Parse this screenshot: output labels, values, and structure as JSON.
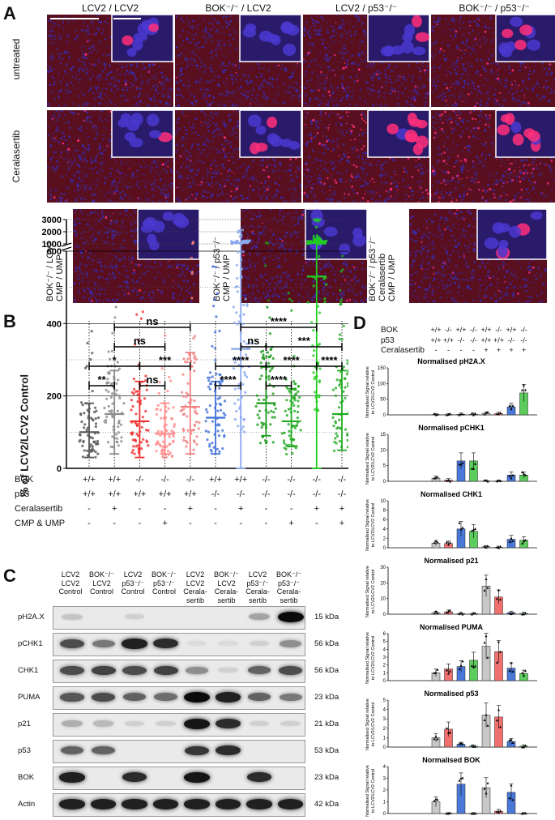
{
  "panelA": {
    "label": "A",
    "columns": [
      "LCV2 / LCV2",
      "BOK⁻/⁻ / LCV2",
      "LCV2 / p53⁻/⁻",
      "BOK⁻/⁻ / p53⁻/⁻"
    ],
    "rows": [
      "untreated",
      "Ceralasertib"
    ],
    "bottom_labels": [
      {
        "line1": "BOK⁻/⁻ / LCV2",
        "line2": "CMP / UMP",
        "line3": ""
      },
      {
        "line1": "BOK⁻/⁻ / p53⁻/⁻",
        "line2": "CMP / UMP",
        "line3": ""
      },
      {
        "line1": "BOK⁻/⁻ / p53⁻/⁻",
        "line2": "Ceralasertib",
        "line3": "CMP / UMP"
      }
    ],
    "colors": {
      "tissue": "#5a0f1e",
      "nuclei": "#3a2aa8",
      "bright_nuclei": "#ff2f7a",
      "inset_bg": "#2a1a6a"
    }
  },
  "panelB": {
    "label": "B",
    "ylabel": "% of LCV2/LCV2 Control",
    "yticks_upper": [
      "3000",
      "2000",
      "1000"
    ],
    "yticks_lower": [
      "600",
      "400",
      "200",
      "0"
    ],
    "significance": [
      "ns",
      "ns",
      "*",
      "***",
      "**",
      "ns",
      "****",
      "***",
      "ns",
      "****",
      "****",
      "****",
      "****",
      "****"
    ],
    "conditions": {
      "labels": [
        "BOK",
        "p53",
        "Ceralasertib",
        "CMP & UMP"
      ],
      "BOK": [
        "+/+",
        "+/+",
        "-/-",
        "-/-",
        "-/-",
        "+/+",
        "+/+",
        "-/-",
        "-/-",
        "-/-",
        "-/-"
      ],
      "p53": [
        "+/+",
        "+/+",
        "+/+",
        "+/+",
        "+/+",
        "-/-",
        "-/-",
        "-/-",
        "-/-",
        "-/-",
        "-/-"
      ],
      "Ceralasertib": [
        "-",
        "+",
        "-",
        "-",
        "+",
        "-",
        "+",
        "-",
        "-",
        "+",
        "+"
      ],
      "CMP & UMP": [
        "-",
        "-",
        "-",
        "+",
        "-",
        "-",
        "-",
        "-",
        "+",
        "-",
        "+"
      ]
    },
    "chart_data": {
      "type": "scatter",
      "ylabel": "% of LCV2/LCV2 Control",
      "groups": 11,
      "means": [
        100,
        150,
        130,
        95,
        170,
        140,
        330,
        180,
        130,
        530,
        150
      ],
      "sd_upper": [
        180,
        270,
        240,
        180,
        320,
        240,
        800,
        280,
        220,
        800,
        270
      ],
      "sd_lower": [
        30,
        40,
        30,
        40,
        40,
        40,
        0,
        90,
        60,
        0,
        50
      ],
      "colors": [
        "#555555",
        "#8c8c8c",
        "#f03030",
        "#ff8888",
        "#f08080",
        "#4070d8",
        "#8aa8ee",
        "#1a9a1a",
        "#22aa22",
        "#22cc22",
        "#22aa22"
      ]
    }
  },
  "panelC": {
    "label": "C",
    "lanes": [
      {
        "l1": "LCV2",
        "l2": "LCV2",
        "l3": "Control"
      },
      {
        "l1": "BOK⁻/⁻",
        "l2": "LCV2",
        "l3": "Control"
      },
      {
        "l1": "LCV2",
        "l2": "p53⁻/⁻",
        "l3": "Control"
      },
      {
        "l1": "BOK⁻/⁻",
        "l2": "p53⁻/⁻",
        "l3": "Control"
      },
      {
        "l1": "LCV2",
        "l2": "LCV2",
        "l3": "Cerala-",
        "l4": "sertib"
      },
      {
        "l1": "BOK⁻/⁻",
        "l2": "LCV2",
        "l3": "Cerala-",
        "l4": "sertib"
      },
      {
        "l1": "LCV2",
        "l2": "p53⁻/⁻",
        "l3": "Cerala-",
        "l4": "sertib"
      },
      {
        "l1": "BOK⁻/⁻",
        "l2": "p53⁻/⁻",
        "l3": "Cerala-",
        "l4": "sertib"
      }
    ],
    "blots": [
      {
        "name": "pH2A.X",
        "kda": "15 kDa",
        "intensity": [
          0.15,
          0,
          0.1,
          0,
          0,
          0,
          0.3,
          1.0
        ]
      },
      {
        "name": "pCHK1",
        "kda": "56 kDa",
        "intensity": [
          0.7,
          0.5,
          0.9,
          0.85,
          0.05,
          0.05,
          0.1,
          0.4
        ]
      },
      {
        "name": "CHK1",
        "kda": "56 kDa",
        "intensity": [
          0.7,
          0.75,
          0.7,
          0.75,
          0.4,
          0.1,
          0.6,
          0.7
        ]
      },
      {
        "name": "PUMA",
        "kda": "23 kDa",
        "intensity": [
          0.65,
          0.7,
          0.6,
          0.55,
          1.0,
          0.9,
          0.6,
          0.5
        ]
      },
      {
        "name": "p21",
        "kda": "21 kDa",
        "intensity": [
          0.25,
          0.2,
          0.1,
          0.1,
          0.95,
          0.85,
          0.1,
          0.1
        ]
      },
      {
        "name": "p53",
        "kda": "53 kDa",
        "intensity": [
          0.6,
          0.6,
          0.0,
          0.0,
          0.8,
          0.85,
          0.0,
          0.0
        ]
      },
      {
        "name": "BOK",
        "kda": "23 kDa",
        "intensity": [
          0.9,
          0.0,
          0.85,
          0.0,
          0.95,
          0.0,
          0.85,
          0.0
        ]
      },
      {
        "name": "Actin",
        "kda": "42 kDa",
        "intensity": [
          0.9,
          0.9,
          0.9,
          0.9,
          0.9,
          0.9,
          0.9,
          0.9
        ]
      }
    ]
  },
  "panelD": {
    "label": "D",
    "conditions": {
      "labels": [
        "BOK",
        "p53",
        "Ceralasertib"
      ],
      "BOK": [
        "+/+",
        "-/-",
        "+/+",
        "-/-",
        "+/+",
        "-/-",
        "+/+",
        "-/-"
      ],
      "p53": [
        "+/+",
        "+/+",
        "-/-",
        "-/-",
        "+/+",
        "+/+",
        "-/-",
        "-/-"
      ],
      "Ceralasertib": [
        "-",
        "-",
        "-",
        "-",
        "+",
        "+",
        "+",
        "+"
      ]
    },
    "ylabel_line1": "Normalised Signal relative",
    "ylabel_line2": "to LCV2/LCV2 Control",
    "colors": [
      "#c8c8c8",
      "#f07070",
      "#4a78d8",
      "#5ccc5c"
    ],
    "chart_data": [
      {
        "type": "bar",
        "title": "Normalised pH2A.X",
        "ylim": [
          0,
          150
        ],
        "yticks": [
          "0",
          "50",
          "100",
          "150"
        ],
        "values": [
          1,
          1,
          2,
          2,
          5,
          4,
          25,
          70
        ]
      },
      {
        "type": "bar",
        "title": "Normalised pCHK1",
        "ylim": [
          0,
          15
        ],
        "yticks": [
          "0",
          "5",
          "10",
          "15"
        ],
        "values": [
          1,
          0.4,
          6.5,
          6.5,
          0.1,
          0.1,
          2,
          2
        ]
      },
      {
        "type": "bar",
        "title": "Normalised CHK1",
        "ylim": [
          0,
          10
        ],
        "yticks": [
          "0",
          "2",
          "4",
          "6",
          "8",
          "10"
        ],
        "values": [
          1,
          0.9,
          4,
          3.5,
          0.2,
          0.1,
          1.8,
          1.6
        ]
      },
      {
        "type": "bar",
        "title": "Normalised p21",
        "ylim": [
          0,
          30
        ],
        "yticks": [
          "0",
          "10",
          "20",
          "30"
        ],
        "values": [
          1,
          1.5,
          0.4,
          0.3,
          18,
          11,
          1,
          0.5
        ]
      },
      {
        "type": "bar",
        "title": "Normalised PUMA",
        "ylim": [
          0,
          6
        ],
        "yticks": [
          "0",
          "1",
          "2",
          "3",
          "4",
          "5",
          "6"
        ],
        "values": [
          1,
          1.5,
          1.8,
          2.6,
          4.4,
          3.7,
          1.6,
          0.9
        ]
      },
      {
        "type": "bar",
        "title": "Normalised p53",
        "ylim": [
          0,
          5
        ],
        "yticks": [
          "0",
          "1",
          "2",
          "3",
          "4",
          "5"
        ],
        "values": [
          1,
          1.9,
          0.3,
          0.1,
          3.4,
          3.2,
          0.6,
          0.1
        ]
      },
      {
        "type": "bar",
        "title": "Normalised BOK",
        "ylim": [
          0,
          4
        ],
        "yticks": [
          "0",
          "1",
          "2",
          "3",
          "4"
        ],
        "values": [
          1,
          0,
          2.5,
          0,
          2.2,
          0.2,
          1.8,
          0
        ]
      }
    ]
  }
}
